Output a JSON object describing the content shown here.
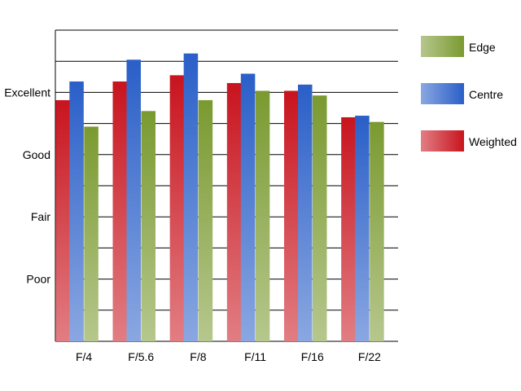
{
  "chart_data": {
    "type": "bar",
    "categories": [
      "F/4",
      "F/5.6",
      "F/8",
      "F/11",
      "F/16",
      "F/22"
    ],
    "series": [
      {
        "name": "Weighted",
        "values": [
          7.75,
          8.35,
          8.55,
          8.3,
          8.05,
          7.2
        ],
        "color": "#c8141e"
      },
      {
        "name": "Centre",
        "values": [
          8.35,
          9.05,
          9.25,
          8.6,
          8.25,
          7.25
        ],
        "color": "#2a5fc8"
      },
      {
        "name": "Edge",
        "values": [
          6.9,
          7.4,
          7.75,
          8.05,
          7.9,
          7.05
        ],
        "color": "#7a9a30"
      }
    ],
    "y_tick_labels": [
      {
        "value": 2,
        "label": "Poor"
      },
      {
        "value": 4,
        "label": "Fair"
      },
      {
        "value": 6,
        "label": "Good"
      },
      {
        "value": 8,
        "label": "Excellent"
      }
    ],
    "ylim": [
      0,
      10
    ],
    "grid": true,
    "gridlines_every": 1,
    "legend_position": "right",
    "legend_order": [
      "Edge",
      "Centre",
      "Weighted"
    ],
    "title": "",
    "xlabel": "",
    "ylabel": ""
  }
}
